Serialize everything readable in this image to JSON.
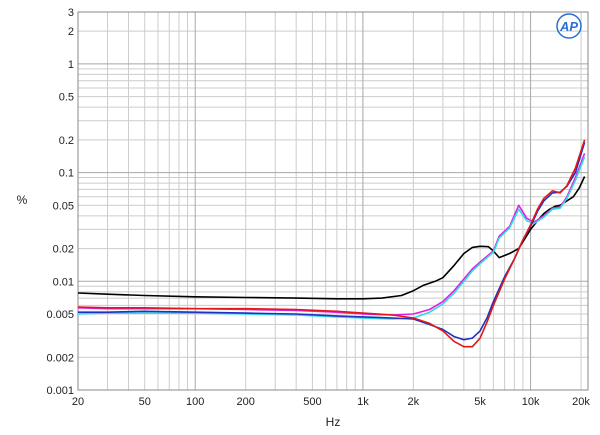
{
  "chart_data": {
    "type": "line",
    "title": "",
    "xlabel": "Hz",
    "ylabel": "%",
    "x_scale": "log",
    "y_scale": "log",
    "xlim": [
      20,
      22000
    ],
    "ylim": [
      0.001,
      3
    ],
    "grid": true,
    "legend": "none",
    "x_ticks": [
      {
        "value": 20,
        "label": "20"
      },
      {
        "value": 50,
        "label": "50"
      },
      {
        "value": 100,
        "label": "100"
      },
      {
        "value": 200,
        "label": "200"
      },
      {
        "value": 500,
        "label": "500"
      },
      {
        "value": 1000,
        "label": "1k"
      },
      {
        "value": 2000,
        "label": "2k"
      },
      {
        "value": 5000,
        "label": "5k"
      },
      {
        "value": 10000,
        "label": "10k"
      },
      {
        "value": 20000,
        "label": "20k"
      }
    ],
    "y_ticks": [
      {
        "value": 0.001,
        "label": "0.001"
      },
      {
        "value": 0.002,
        "label": "0.002"
      },
      {
        "value": 0.005,
        "label": "0.005"
      },
      {
        "value": 0.01,
        "label": "0.01"
      },
      {
        "value": 0.02,
        "label": "0.02"
      },
      {
        "value": 0.05,
        "label": "0.05"
      },
      {
        "value": 0.1,
        "label": "0.1"
      },
      {
        "value": 0.2,
        "label": "0.2"
      },
      {
        "value": 0.5,
        "label": "0.5"
      },
      {
        "value": 1,
        "label": "1"
      },
      {
        "value": 2,
        "label": "2"
      },
      {
        "value": 3,
        "label": "3"
      }
    ],
    "series": [
      {
        "color": "#000000",
        "points": [
          [
            20,
            0.0078
          ],
          [
            30,
            0.0076
          ],
          [
            50,
            0.0074
          ],
          [
            100,
            0.0072
          ],
          [
            200,
            0.0071
          ],
          [
            400,
            0.007
          ],
          [
            700,
            0.0069
          ],
          [
            1000,
            0.0069
          ],
          [
            1300,
            0.007
          ],
          [
            1700,
            0.0074
          ],
          [
            2000,
            0.0082
          ],
          [
            2300,
            0.0092
          ],
          [
            2700,
            0.01
          ],
          [
            3000,
            0.0108
          ],
          [
            3500,
            0.014
          ],
          [
            4000,
            0.018
          ],
          [
            4500,
            0.0205
          ],
          [
            5000,
            0.021
          ],
          [
            5600,
            0.0208
          ],
          [
            6000,
            0.019
          ],
          [
            6500,
            0.0165
          ],
          [
            7500,
            0.018
          ],
          [
            8500,
            0.02
          ],
          [
            10000,
            0.03
          ],
          [
            11000,
            0.036
          ],
          [
            12000,
            0.042
          ],
          [
            13000,
            0.046
          ],
          [
            14000,
            0.049
          ],
          [
            15000,
            0.05
          ],
          [
            16500,
            0.055
          ],
          [
            18000,
            0.06
          ],
          [
            19500,
            0.072
          ],
          [
            21000,
            0.092
          ]
        ]
      },
      {
        "color": "#e020e0",
        "points": [
          [
            20,
            0.0057
          ],
          [
            30,
            0.0056
          ],
          [
            50,
            0.0056
          ],
          [
            100,
            0.0056
          ],
          [
            200,
            0.0055
          ],
          [
            400,
            0.0054
          ],
          [
            700,
            0.0052
          ],
          [
            1000,
            0.005
          ],
          [
            1500,
            0.0049
          ],
          [
            2000,
            0.005
          ],
          [
            2500,
            0.0055
          ],
          [
            3000,
            0.0065
          ],
          [
            3500,
            0.0082
          ],
          [
            4000,
            0.0105
          ],
          [
            4500,
            0.013
          ],
          [
            5000,
            0.015
          ],
          [
            5500,
            0.017
          ],
          [
            6000,
            0.019
          ],
          [
            6500,
            0.026
          ],
          [
            7500,
            0.032
          ],
          [
            8500,
            0.05
          ],
          [
            9500,
            0.038
          ],
          [
            10500,
            0.035
          ],
          [
            12000,
            0.04
          ],
          [
            13500,
            0.047
          ],
          [
            15000,
            0.048
          ],
          [
            16500,
            0.06
          ],
          [
            18500,
            0.09
          ],
          [
            21000,
            0.15
          ]
        ]
      },
      {
        "color": "#30d8e8",
        "points": [
          [
            20,
            0.005
          ],
          [
            30,
            0.0051
          ],
          [
            50,
            0.0051
          ],
          [
            100,
            0.0051
          ],
          [
            200,
            0.005
          ],
          [
            400,
            0.0049
          ],
          [
            700,
            0.0047
          ],
          [
            1000,
            0.0046
          ],
          [
            1500,
            0.0045
          ],
          [
            2000,
            0.0046
          ],
          [
            2500,
            0.0052
          ],
          [
            3000,
            0.0062
          ],
          [
            3500,
            0.0078
          ],
          [
            4000,
            0.01
          ],
          [
            4500,
            0.0125
          ],
          [
            5000,
            0.0145
          ],
          [
            5500,
            0.0165
          ],
          [
            6000,
            0.0185
          ],
          [
            6500,
            0.025
          ],
          [
            7500,
            0.031
          ],
          [
            8500,
            0.046
          ],
          [
            9500,
            0.036
          ],
          [
            10500,
            0.034
          ],
          [
            12000,
            0.039
          ],
          [
            13500,
            0.046
          ],
          [
            15000,
            0.047
          ],
          [
            16500,
            0.058
          ],
          [
            18500,
            0.085
          ],
          [
            21000,
            0.14
          ]
        ]
      },
      {
        "color": "#2030c0",
        "points": [
          [
            20,
            0.0052
          ],
          [
            30,
            0.0052
          ],
          [
            50,
            0.0053
          ],
          [
            100,
            0.0052
          ],
          [
            200,
            0.0051
          ],
          [
            400,
            0.005
          ],
          [
            700,
            0.0048
          ],
          [
            1000,
            0.0047
          ],
          [
            1500,
            0.0046
          ],
          [
            2000,
            0.0045
          ],
          [
            2500,
            0.004
          ],
          [
            3000,
            0.0036
          ],
          [
            3500,
            0.0031
          ],
          [
            4000,
            0.0029
          ],
          [
            4500,
            0.003
          ],
          [
            5000,
            0.0035
          ],
          [
            5500,
            0.0046
          ],
          [
            6000,
            0.0065
          ],
          [
            7000,
            0.011
          ],
          [
            8000,
            0.016
          ],
          [
            9000,
            0.024
          ],
          [
            10000,
            0.032
          ],
          [
            11000,
            0.044
          ],
          [
            12000,
            0.055
          ],
          [
            13500,
            0.065
          ],
          [
            15000,
            0.066
          ],
          [
            16500,
            0.075
          ],
          [
            18500,
            0.1
          ],
          [
            21000,
            0.19
          ]
        ]
      },
      {
        "color": "#e01818",
        "points": [
          [
            20,
            0.0058
          ],
          [
            30,
            0.0057
          ],
          [
            50,
            0.0057
          ],
          [
            100,
            0.0056
          ],
          [
            200,
            0.0056
          ],
          [
            400,
            0.0055
          ],
          [
            700,
            0.0053
          ],
          [
            1000,
            0.0051
          ],
          [
            1500,
            0.0049
          ],
          [
            2000,
            0.0046
          ],
          [
            2500,
            0.0041
          ],
          [
            3000,
            0.0035
          ],
          [
            3500,
            0.0028
          ],
          [
            4000,
            0.0025
          ],
          [
            4500,
            0.0025
          ],
          [
            5000,
            0.003
          ],
          [
            5500,
            0.0042
          ],
          [
            6000,
            0.006
          ],
          [
            7000,
            0.0105
          ],
          [
            8000,
            0.016
          ],
          [
            9000,
            0.024
          ],
          [
            10000,
            0.033
          ],
          [
            11000,
            0.046
          ],
          [
            12000,
            0.058
          ],
          [
            13500,
            0.068
          ],
          [
            15000,
            0.065
          ],
          [
            16500,
            0.076
          ],
          [
            18500,
            0.11
          ],
          [
            21000,
            0.2
          ]
        ]
      }
    ]
  },
  "logo": {
    "text": "AP",
    "color": "#2a6fd6"
  }
}
